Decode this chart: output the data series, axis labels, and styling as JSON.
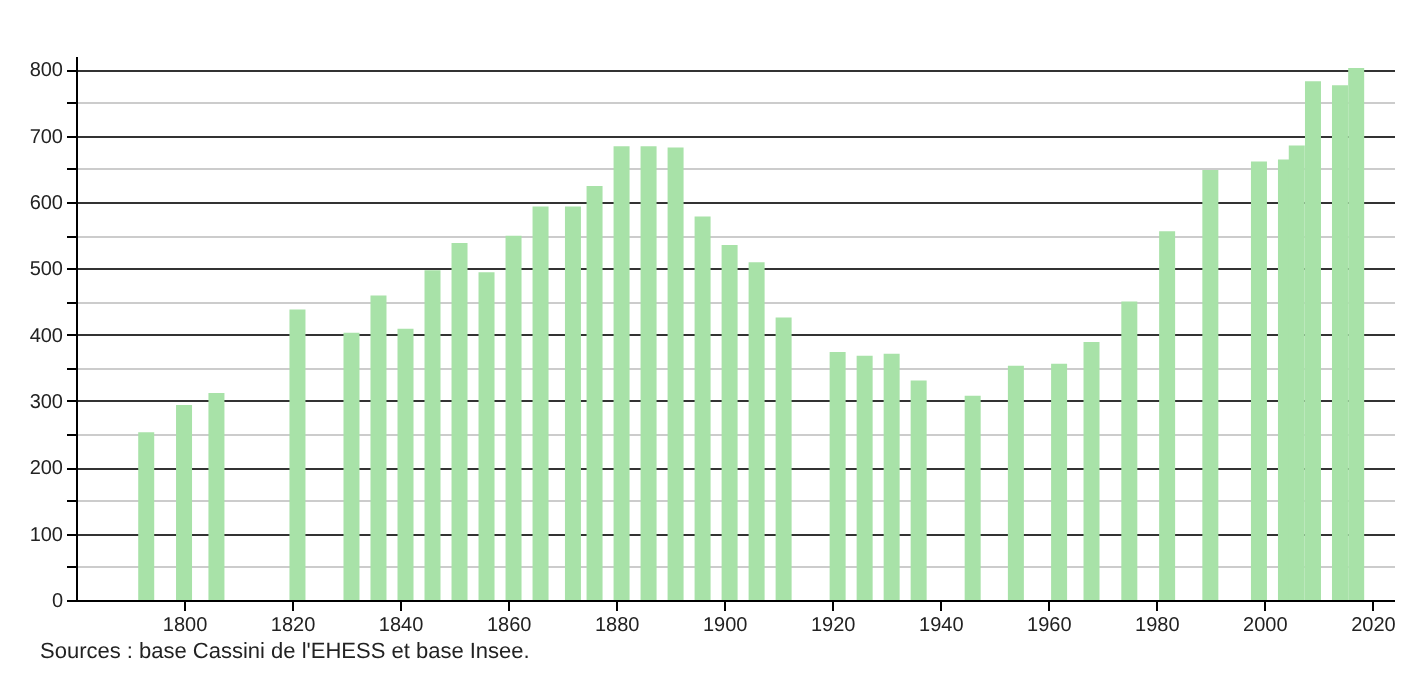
{
  "chart_data": {
    "type": "bar",
    "x": [
      1793,
      1800,
      1806,
      1821,
      1831,
      1836,
      1841,
      1846,
      1851,
      1856,
      1861,
      1866,
      1872,
      1876,
      1881,
      1886,
      1891,
      1896,
      1901,
      1906,
      1911,
      1921,
      1926,
      1931,
      1936,
      1946,
      1954,
      1962,
      1968,
      1975,
      1982,
      1990,
      1999,
      2004,
      2006,
      2009,
      2014,
      2017
    ],
    "values": [
      253,
      294,
      312,
      438,
      403,
      459,
      409,
      497,
      538,
      494,
      549,
      593,
      593,
      624,
      684,
      684,
      682,
      578,
      535,
      509,
      426,
      374,
      368,
      371,
      331,
      308,
      353,
      356,
      389,
      450,
      556,
      648,
      661,
      664,
      685,
      782,
      776,
      802
    ],
    "color": "#a8e2a8",
    "xlim": [
      1780,
      2024
    ],
    "xticks": [
      1800,
      1820,
      1840,
      1860,
      1880,
      1900,
      1920,
      1940,
      1960,
      1980,
      2000,
      2020
    ],
    "ylim": [
      0,
      820
    ],
    "yticks": [
      0,
      {
        "value": 50,
        "label": null
      },
      100,
      {
        "value": 150,
        "label": null
      },
      200,
      {
        "value": 250,
        "label": null
      },
      300,
      {
        "value": 350,
        "label": null
      },
      400,
      {
        "value": 450,
        "label": null
      },
      500,
      {
        "value": 550,
        "label": null
      },
      600,
      {
        "value": 650,
        "label": null
      },
      700,
      {
        "value": 750,
        "label": null
      },
      800
    ],
    "grid": "y",
    "annotations": [
      "Sources : base Cassini de l'EHESS et base Insee."
    ]
  }
}
